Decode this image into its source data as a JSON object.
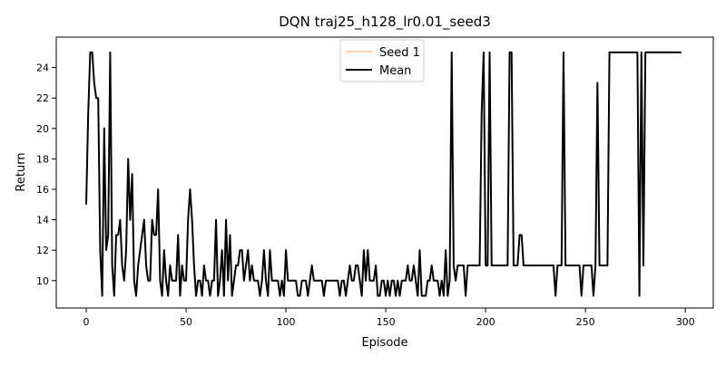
{
  "chart_data": {
    "type": "line",
    "title": "DQN traj25_h128_lr0.01_seed3",
    "xlabel": "Episode",
    "ylabel": "Return",
    "xlim": [
      -15,
      314
    ],
    "ylim": [
      8.2,
      26.0
    ],
    "xticks": [
      0,
      50,
      100,
      150,
      200,
      250,
      300
    ],
    "yticks": [
      10,
      12,
      14,
      16,
      18,
      20,
      22,
      24
    ],
    "grid": false,
    "legend_position": "top-center",
    "series": [
      {
        "name": "Seed 1",
        "color": "#f5c89a",
        "values": [
          15,
          21,
          25,
          25,
          23,
          22,
          22,
          12,
          9,
          20,
          12,
          13,
          25,
          11,
          9,
          13,
          13,
          14,
          11,
          10,
          12,
          18,
          14,
          17,
          10,
          9,
          11,
          12,
          13,
          14,
          11,
          10,
          10,
          14,
          13,
          13,
          16,
          10,
          9,
          12,
          10,
          9,
          11,
          10,
          10,
          10,
          13,
          9,
          11,
          10,
          10,
          14,
          16,
          14,
          11,
          9,
          10,
          10,
          9,
          11,
          10,
          10,
          9,
          10,
          10,
          14,
          9,
          10,
          12,
          9,
          14,
          10,
          13,
          9,
          10,
          11,
          11,
          12,
          12,
          10,
          11,
          12,
          10,
          11,
          10,
          10,
          10,
          9,
          10,
          12,
          10,
          9,
          12,
          10,
          10,
          10,
          10,
          9,
          10,
          9,
          12,
          10,
          10,
          10,
          10,
          10,
          9,
          9,
          10,
          10,
          10,
          9,
          10,
          11,
          10,
          10,
          10,
          10,
          10,
          9,
          10,
          10,
          10,
          10,
          10,
          10,
          10,
          9,
          10,
          10,
          9,
          10,
          11,
          10,
          10,
          11,
          11,
          10,
          9,
          12,
          10,
          12,
          10,
          10,
          10,
          11,
          9,
          9,
          10,
          10,
          9,
          10,
          9,
          10,
          10,
          9,
          10,
          9,
          10,
          10,
          10,
          11,
          10,
          10,
          11,
          10,
          9,
          12,
          9,
          9,
          9,
          10,
          10,
          11,
          10,
          10,
          10,
          9,
          10,
          9,
          12,
          9,
          10,
          25,
          11,
          10,
          11,
          11,
          11,
          11,
          9,
          11,
          11,
          11,
          11,
          11,
          11,
          11,
          21,
          25,
          11,
          11,
          25,
          11,
          11,
          11,
          11,
          11,
          11,
          11,
          11,
          11,
          25,
          25,
          11,
          11,
          11,
          13,
          13,
          11,
          11,
          11,
          11,
          11,
          11,
          11,
          11,
          11,
          11,
          11,
          11,
          11,
          11,
          11,
          11,
          9,
          11,
          11,
          11,
          25,
          11,
          11,
          11,
          11,
          11,
          11,
          11,
          11,
          9,
          11,
          11,
          11,
          11,
          11,
          9,
          11,
          23,
          11,
          11,
          11,
          11,
          11,
          25,
          25,
          25,
          25,
          25,
          25,
          25,
          25,
          25,
          25,
          25,
          25,
          25,
          25,
          25,
          9,
          25,
          11,
          25,
          25,
          25,
          25,
          25,
          25,
          25,
          25,
          25,
          25,
          25,
          25,
          25,
          25,
          25,
          25,
          25,
          25,
          25
        ]
      },
      {
        "name": "Mean",
        "color": "#000000",
        "values": [
          15,
          21,
          25,
          25,
          23,
          22,
          22,
          12,
          9,
          20,
          12,
          13,
          25,
          11,
          9,
          13,
          13,
          14,
          11,
          10,
          12,
          18,
          14,
          17,
          10,
          9,
          11,
          12,
          13,
          14,
          11,
          10,
          10,
          14,
          13,
          13,
          16,
          10,
          9,
          12,
          10,
          9,
          11,
          10,
          10,
          10,
          13,
          9,
          11,
          10,
          10,
          14,
          16,
          14,
          11,
          9,
          10,
          10,
          9,
          11,
          10,
          10,
          9,
          10,
          10,
          14,
          9,
          10,
          12,
          9,
          14,
          10,
          13,
          9,
          10,
          11,
          11,
          12,
          12,
          10,
          11,
          12,
          10,
          11,
          10,
          10,
          10,
          9,
          10,
          12,
          10,
          9,
          12,
          10,
          10,
          10,
          10,
          9,
          10,
          9,
          12,
          10,
          10,
          10,
          10,
          10,
          9,
          9,
          10,
          10,
          10,
          9,
          10,
          11,
          10,
          10,
          10,
          10,
          10,
          9,
          10,
          10,
          10,
          10,
          10,
          10,
          10,
          9,
          10,
          10,
          9,
          10,
          11,
          10,
          10,
          11,
          11,
          10,
          9,
          12,
          10,
          12,
          10,
          10,
          10,
          11,
          9,
          9,
          10,
          10,
          9,
          10,
          9,
          10,
          10,
          9,
          10,
          9,
          10,
          10,
          10,
          11,
          10,
          10,
          11,
          10,
          9,
          12,
          9,
          9,
          9,
          10,
          10,
          11,
          10,
          10,
          10,
          9,
          10,
          9,
          12,
          9,
          10,
          25,
          11,
          10,
          11,
          11,
          11,
          11,
          9,
          11,
          11,
          11,
          11,
          11,
          11,
          11,
          21,
          25,
          11,
          11,
          25,
          11,
          11,
          11,
          11,
          11,
          11,
          11,
          11,
          11,
          25,
          25,
          11,
          11,
          11,
          13,
          13,
          11,
          11,
          11,
          11,
          11,
          11,
          11,
          11,
          11,
          11,
          11,
          11,
          11,
          11,
          11,
          11,
          9,
          11,
          11,
          11,
          25,
          11,
          11,
          11,
          11,
          11,
          11,
          11,
          11,
          9,
          11,
          11,
          11,
          11,
          11,
          9,
          11,
          23,
          11,
          11,
          11,
          11,
          11,
          25,
          25,
          25,
          25,
          25,
          25,
          25,
          25,
          25,
          25,
          25,
          25,
          25,
          25,
          25,
          9,
          25,
          11,
          25,
          25,
          25,
          25,
          25,
          25,
          25,
          25,
          25,
          25,
          25,
          25,
          25,
          25,
          25,
          25,
          25,
          25,
          25
        ]
      }
    ]
  }
}
